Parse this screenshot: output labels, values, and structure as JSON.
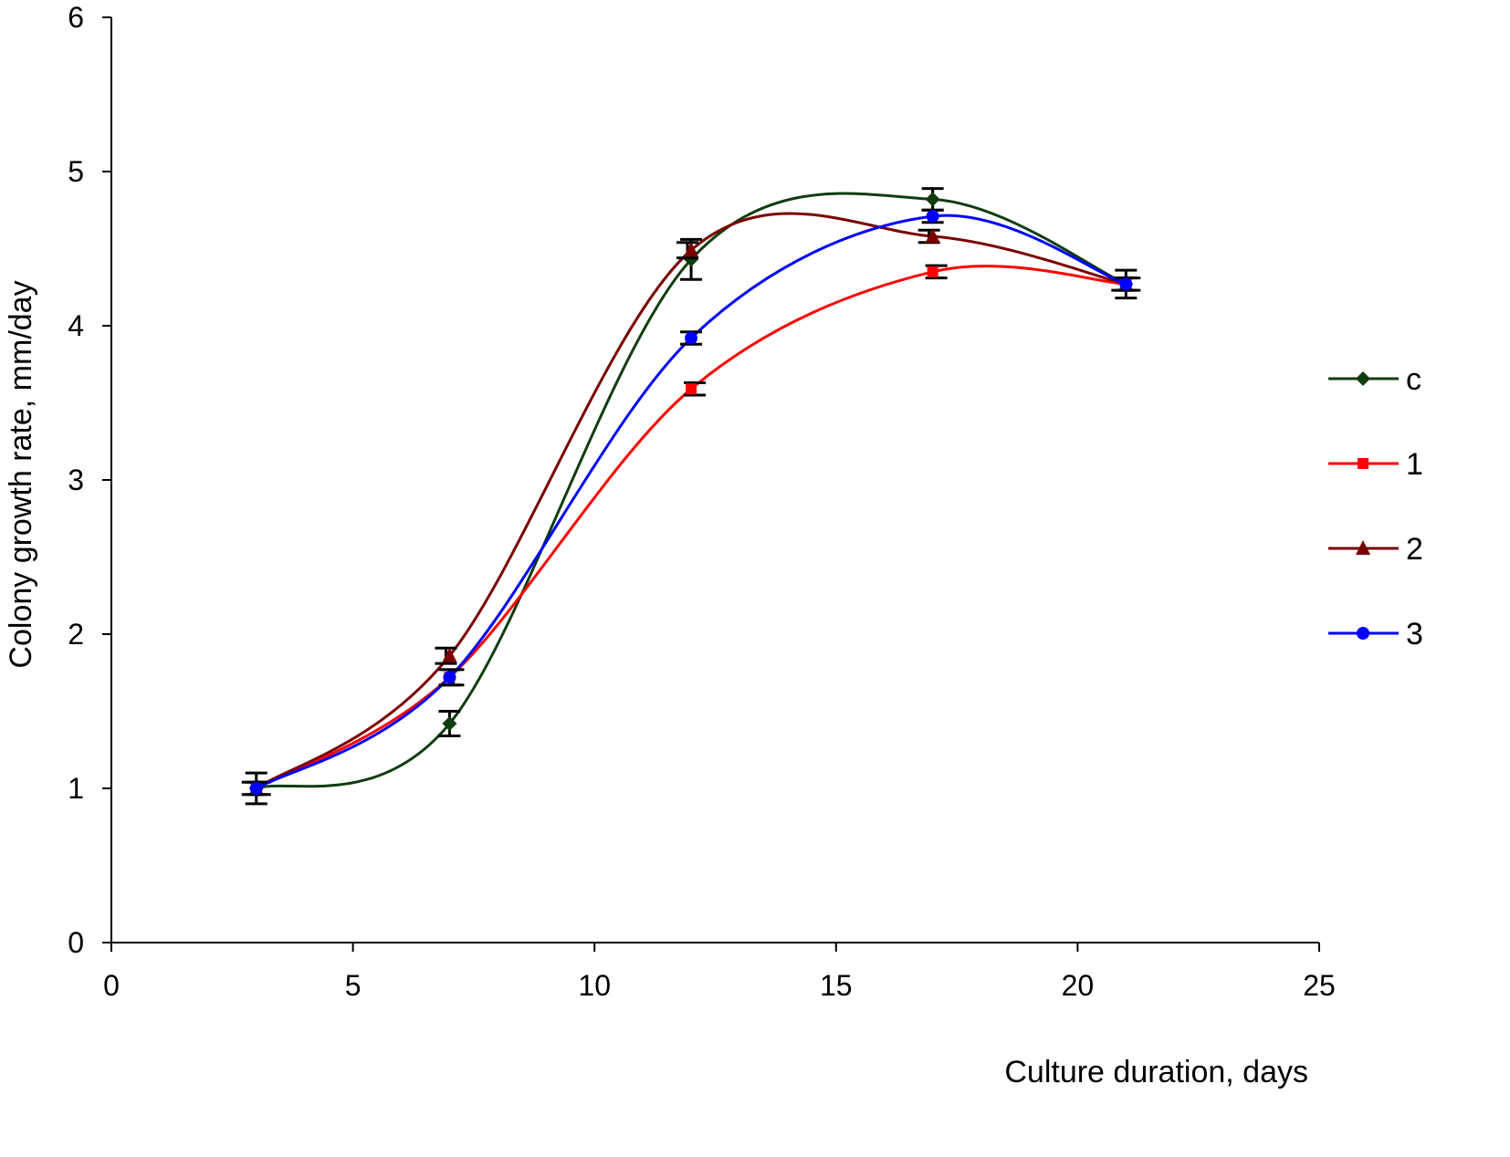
{
  "chart_data": {
    "type": "line",
    "title": "",
    "xlabel": "Culture duration, days",
    "ylabel": "Colony growth rate, mm/day",
    "xlim": [
      0,
      25
    ],
    "ylim": [
      0,
      6
    ],
    "xticks": [
      0,
      5,
      10,
      15,
      20,
      25
    ],
    "yticks": [
      0,
      1,
      2,
      3,
      4,
      5,
      6
    ],
    "grid": false,
    "smoothed": true,
    "legend_position": "right",
    "x": [
      3,
      7,
      12,
      17,
      21
    ],
    "series": [
      {
        "name": "c",
        "color": "#0f3d0f",
        "marker": "diamond",
        "values": [
          1.0,
          1.42,
          4.43,
          4.82,
          4.27
        ],
        "error": [
          0.1,
          0.08,
          0.13,
          0.07,
          0.09
        ]
      },
      {
        "name": "1",
        "color": "#ff0000",
        "marker": "square",
        "values": [
          1.0,
          1.72,
          3.59,
          4.35,
          4.27
        ],
        "error": [
          0.04,
          0.05,
          0.04,
          0.04,
          0.04
        ]
      },
      {
        "name": "2",
        "color": "#7a0000",
        "marker": "triangle",
        "values": [
          1.0,
          1.86,
          4.49,
          4.58,
          4.27
        ],
        "error": [
          0.04,
          0.05,
          0.05,
          0.04,
          0.04
        ]
      },
      {
        "name": "3",
        "color": "#0000ff",
        "marker": "circle",
        "values": [
          1.0,
          1.72,
          3.92,
          4.71,
          4.27
        ],
        "error": [
          0.04,
          0.05,
          0.04,
          0.04,
          0.04
        ]
      }
    ]
  }
}
